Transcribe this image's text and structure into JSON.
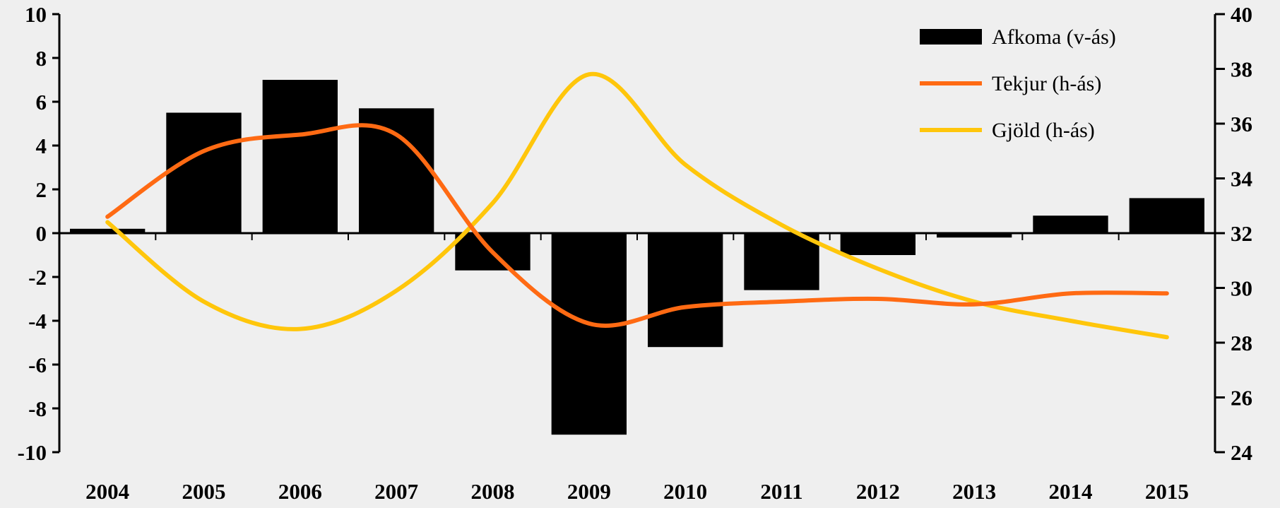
{
  "chart_data": {
    "type": "bar",
    "categories": [
      "2004",
      "2005",
      "2006",
      "2007",
      "2008",
      "2009",
      "2010",
      "2011",
      "2012",
      "2013",
      "2014",
      "2015"
    ],
    "series": [
      {
        "name": "Afkoma (v-ás)",
        "type": "bar",
        "axis": "left",
        "color": "#000000",
        "values": [
          0.2,
          5.5,
          7.0,
          5.7,
          -1.7,
          -9.2,
          -5.2,
          -2.6,
          -1.0,
          -0.2,
          0.8,
          1.6
        ]
      },
      {
        "name": "Tekjur (h-ás)",
        "type": "line",
        "axis": "right",
        "color": "#ff6a13",
        "values": [
          32.6,
          35.0,
          35.6,
          35.6,
          31.3,
          28.7,
          29.3,
          29.5,
          29.6,
          29.4,
          29.8,
          29.8
        ]
      },
      {
        "name": "Gjöld (h-ás)",
        "type": "line",
        "axis": "right",
        "color": "#ffc60b",
        "values": [
          32.4,
          29.5,
          28.5,
          29.9,
          33.1,
          37.8,
          34.5,
          32.3,
          30.7,
          29.5,
          28.8,
          28.2
        ]
      }
    ],
    "y_left": {
      "ylim": [
        -10,
        10
      ],
      "ticks": [
        "10",
        "8",
        "6",
        "4",
        "2",
        "0",
        "-2",
        "-4",
        "-6",
        "-8",
        "-10"
      ]
    },
    "y_right": {
      "ylim": [
        24,
        40
      ],
      "ticks": [
        "40",
        "38",
        "36",
        "34",
        "32",
        "30",
        "28",
        "26",
        "24"
      ]
    },
    "legend_position": "top-right",
    "grid": false,
    "title": "",
    "xlabel": "",
    "ylabel": ""
  }
}
